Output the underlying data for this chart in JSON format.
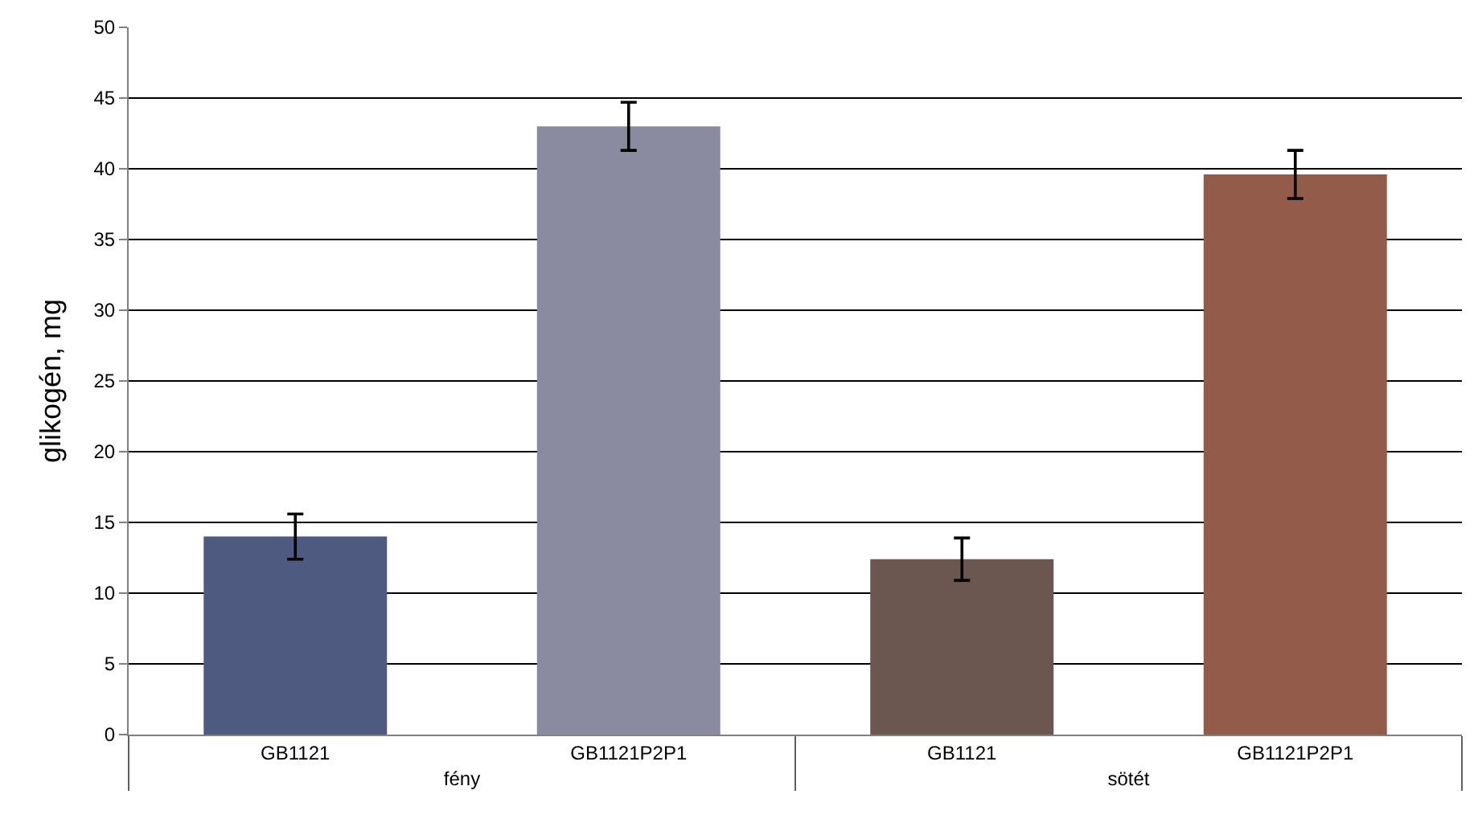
{
  "chart_data": {
    "type": "bar",
    "ylabel": "glikogén, mg",
    "categories": [
      "GB1121",
      "GB1121P2P1",
      "GB1121",
      "GB1121P2P1"
    ],
    "annotations": [
      "fény",
      "sötét"
    ],
    "values": [
      14.0,
      43.0,
      12.4,
      39.6
    ],
    "colors": [
      "#4f5a80",
      "#8a8aa0",
      "#6b5650",
      "#935b4a"
    ],
    "errors": [
      1.6,
      1.7,
      1.5,
      1.7
    ],
    "ylim": [
      0,
      50
    ],
    "yticks": [
      0,
      5,
      10,
      15,
      20,
      25,
      30,
      35,
      40,
      45,
      50
    ],
    "grid": "y",
    "legend": false
  }
}
